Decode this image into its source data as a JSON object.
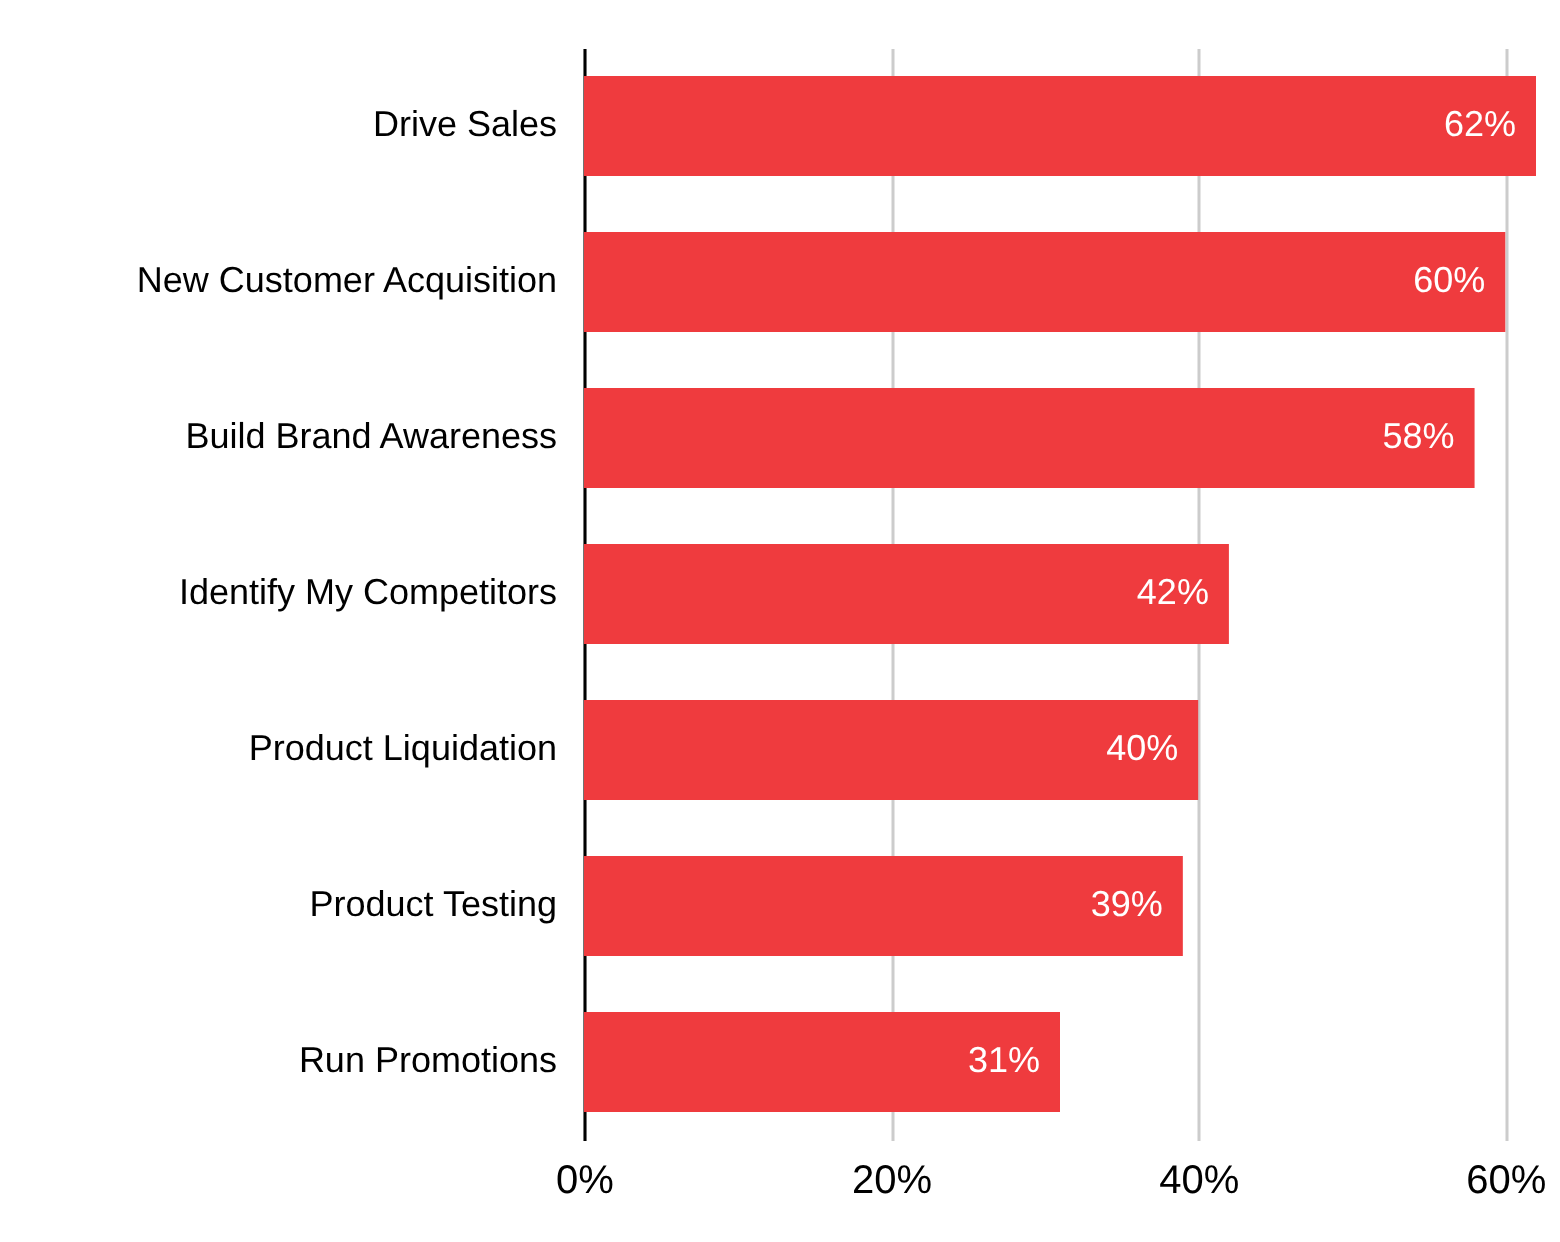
{
  "chart_data": {
    "type": "bar",
    "orientation": "horizontal",
    "categories": [
      "Drive Sales",
      "New Customer Acquisition",
      "Build Brand Awareness",
      "Identify My Competitors",
      "Product Liquidation",
      "Product Testing",
      "Run Promotions"
    ],
    "values": [
      62,
      60,
      58,
      42,
      40,
      39,
      31
    ],
    "value_labels": [
      "62%",
      "60%",
      "58%",
      "42%",
      "40%",
      "39%",
      "31%"
    ],
    "color": "#ef3b3e",
    "xlim": [
      0,
      62
    ],
    "xticks": [
      {
        "value": 0,
        "label": "0%"
      },
      {
        "value": 20,
        "label": "20%"
      },
      {
        "value": 40,
        "label": "40%"
      },
      {
        "value": 60,
        "label": "60%"
      }
    ],
    "grid": "x"
  }
}
